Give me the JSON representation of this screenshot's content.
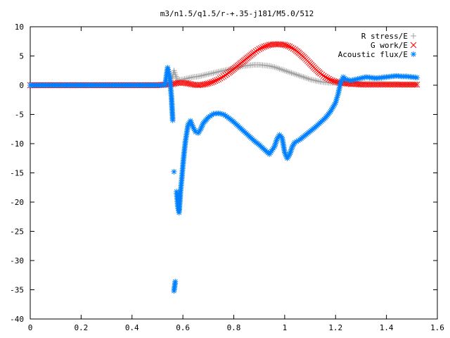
{
  "chart_data": {
    "type": "scatter",
    "title": "m3/n1.5/q1.5/r-+.35-j181/M5.0/512",
    "xlabel": "",
    "ylabel": "",
    "xlim": [
      0,
      1.6
    ],
    "ylim": [
      -40,
      10
    ],
    "grid": false,
    "legend_position": "top-right",
    "x_ticks": [
      "0",
      "0.2",
      "0.4",
      "0.6",
      "0.8",
      "1",
      "1.2",
      "1.4",
      "1.6"
    ],
    "y_ticks": [
      "10",
      "5",
      "0",
      "-5",
      "-10",
      "-15",
      "-20",
      "-25",
      "-30",
      "-35",
      "-40"
    ],
    "series": [
      {
        "name": "R stress/E",
        "marker": "plus",
        "color": "#a0a0a0",
        "x": [
          0.0,
          0.05,
          0.1,
          0.15,
          0.2,
          0.25,
          0.3,
          0.35,
          0.4,
          0.45,
          0.5,
          0.54,
          0.55,
          0.56,
          0.565,
          0.57,
          0.575,
          0.58,
          0.6,
          0.62,
          0.64,
          0.66,
          0.68,
          0.7,
          0.72,
          0.74,
          0.76,
          0.78,
          0.8,
          0.82,
          0.84,
          0.86,
          0.88,
          0.9,
          0.92,
          0.94,
          0.96,
          0.98,
          1.0,
          1.02,
          1.04,
          1.06,
          1.08,
          1.1,
          1.12,
          1.14,
          1.16,
          1.18,
          1.2,
          1.22,
          1.24,
          1.26,
          1.28,
          1.3,
          1.32,
          1.34,
          1.36,
          1.38,
          1.4,
          1.42,
          1.44,
          1.46,
          1.48,
          1.5,
          1.52
        ],
        "y": [
          0,
          0,
          0,
          0,
          0,
          0,
          0,
          0,
          0,
          0,
          0,
          0.3,
          0.8,
          1.5,
          2.5,
          1.8,
          1.2,
          0.9,
          1.0,
          1.2,
          1.4,
          1.5,
          1.7,
          1.9,
          2.1,
          2.3,
          2.5,
          2.7,
          2.9,
          3.1,
          3.3,
          3.4,
          3.5,
          3.5,
          3.4,
          3.3,
          3.1,
          2.8,
          2.5,
          2.2,
          1.9,
          1.6,
          1.3,
          1.0,
          0.8,
          0.6,
          0.5,
          0.4,
          0.4,
          0.5,
          0.6,
          0.6,
          0.5,
          0.4,
          0.3,
          0.3,
          0.3,
          0.3,
          0.2,
          0.2,
          0.2,
          0.1,
          0.1,
          0.1,
          0.1
        ]
      },
      {
        "name": "G work/E",
        "marker": "cross",
        "color": "#ff0000",
        "x": [
          0.0,
          0.05,
          0.1,
          0.15,
          0.2,
          0.25,
          0.3,
          0.35,
          0.4,
          0.45,
          0.5,
          0.54,
          0.56,
          0.58,
          0.6,
          0.62,
          0.64,
          0.66,
          0.68,
          0.7,
          0.72,
          0.74,
          0.76,
          0.78,
          0.8,
          0.82,
          0.84,
          0.86,
          0.88,
          0.9,
          0.92,
          0.94,
          0.96,
          0.98,
          1.0,
          1.02,
          1.04,
          1.06,
          1.08,
          1.1,
          1.12,
          1.14,
          1.16,
          1.18,
          1.2,
          1.22,
          1.24,
          1.26,
          1.28,
          1.3,
          1.32,
          1.34,
          1.36,
          1.38,
          1.4,
          1.42,
          1.44,
          1.46,
          1.48,
          1.5,
          1.52
        ],
        "y": [
          0,
          0,
          0,
          0,
          0,
          0,
          0,
          0,
          0,
          0,
          0,
          0.1,
          0.2,
          0.4,
          0.4,
          0.3,
          0.1,
          0.0,
          0.1,
          0.3,
          0.6,
          1.0,
          1.5,
          2.1,
          2.8,
          3.5,
          4.2,
          4.9,
          5.6,
          6.2,
          6.6,
          6.9,
          7.0,
          7.0,
          6.9,
          6.6,
          6.1,
          5.4,
          4.6,
          3.7,
          2.8,
          2.0,
          1.4,
          0.9,
          0.6,
          0.4,
          0.3,
          0.2,
          0.2,
          0.1,
          0.1,
          0.1,
          0.1,
          0.1,
          0.1,
          0.1,
          0.1,
          0.1,
          0.1,
          0.1,
          0.1
        ]
      },
      {
        "name": "Acoustic flux/E",
        "marker": "star",
        "color": "#0080ff",
        "x": [
          0.0,
          0.05,
          0.1,
          0.15,
          0.2,
          0.25,
          0.3,
          0.35,
          0.4,
          0.45,
          0.5,
          0.53,
          0.54,
          0.545,
          0.55,
          0.555,
          0.56,
          0.565,
          0.565,
          0.57,
          0.575,
          0.58,
          0.585,
          0.59,
          0.595,
          0.6,
          0.605,
          0.61,
          0.615,
          0.62,
          0.63,
          0.64,
          0.65,
          0.66,
          0.67,
          0.68,
          0.7,
          0.72,
          0.74,
          0.76,
          0.78,
          0.8,
          0.82,
          0.84,
          0.86,
          0.88,
          0.9,
          0.92,
          0.94,
          0.96,
          0.97,
          0.98,
          0.99,
          1.0,
          1.01,
          1.02,
          1.03,
          1.04,
          1.06,
          1.08,
          1.1,
          1.12,
          1.14,
          1.16,
          1.18,
          1.2,
          1.21,
          1.22,
          1.23,
          1.24,
          1.26,
          1.28,
          1.3,
          1.32,
          1.34,
          1.36,
          1.38,
          1.4,
          1.42,
          1.44,
          1.46,
          1.48,
          1.5,
          1.52
        ],
        "y": [
          0,
          0,
          0,
          0,
          0,
          0,
          0,
          0,
          0,
          0,
          0,
          0,
          3.0,
          2.0,
          0.5,
          -2.0,
          -6.0,
          -14.8,
          -35.2,
          -33.6,
          -18.2,
          -20.8,
          -21.8,
          -18.6,
          -16.3,
          -13.7,
          -11.5,
          -9.6,
          -8.2,
          -6.8,
          -6.1,
          -7.2,
          -8.0,
          -8.2,
          -7.5,
          -6.5,
          -5.5,
          -4.9,
          -4.8,
          -5.0,
          -5.6,
          -6.3,
          -7.1,
          -7.9,
          -8.7,
          -9.5,
          -10.2,
          -11.0,
          -11.8,
          -10.5,
          -9.2,
          -8.5,
          -9.0,
          -11.5,
          -12.5,
          -11.8,
          -10.5,
          -9.8,
          -9.3,
          -8.6,
          -7.9,
          -7.2,
          -6.4,
          -5.6,
          -4.5,
          -3.0,
          -1.5,
          0.5,
          1.4,
          1.0,
          0.8,
          1.0,
          1.2,
          1.4,
          1.3,
          1.2,
          1.3,
          1.4,
          1.5,
          1.6,
          1.5,
          1.5,
          1.4,
          1.3
        ]
      }
    ]
  }
}
